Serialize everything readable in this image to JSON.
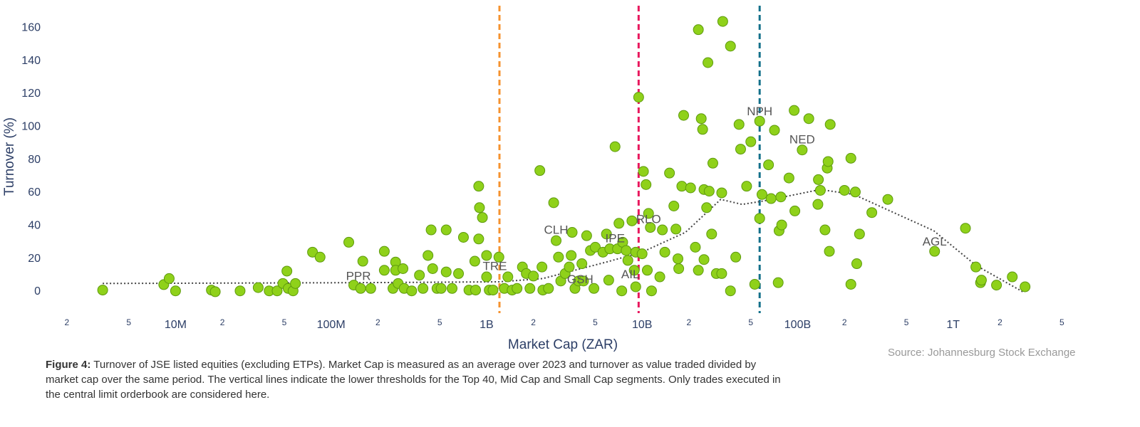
{
  "chart_data": {
    "type": "scatter",
    "x_label": "Market Cap (ZAR)",
    "y_label": "Turnover (%)",
    "log_x": true,
    "color": "#8fd11a",
    "xlim": [
      1400000.0,
      7600000000000.0
    ],
    "ylim": [
      -13,
      177
    ],
    "xticks": [
      {
        "value": 2000000.0,
        "label": "2"
      },
      {
        "value": 5000000.0,
        "label": "5"
      },
      {
        "value": 10000000.0,
        "label": "10M"
      },
      {
        "value": 20000000.0,
        "label": "2"
      },
      {
        "value": 50000000.0,
        "label": "5"
      },
      {
        "value": 100000000.0,
        "label": "100M"
      },
      {
        "value": 200000000.0,
        "label": "2"
      },
      {
        "value": 500000000.0,
        "label": "5"
      },
      {
        "value": 1000000000.0,
        "label": "1B"
      },
      {
        "value": 2000000000.0,
        "label": "2"
      },
      {
        "value": 5000000000.0,
        "label": "5"
      },
      {
        "value": 10000000000.0,
        "label": "10B"
      },
      {
        "value": 20000000000.0,
        "label": "2"
      },
      {
        "value": 50000000000.0,
        "label": "5"
      },
      {
        "value": 100000000000.0,
        "label": "100B"
      },
      {
        "value": 200000000000.0,
        "label": "2"
      },
      {
        "value": 500000000000.0,
        "label": "5"
      },
      {
        "value": 1000000000000.0,
        "label": "1T"
      },
      {
        "value": 2000000000000.0,
        "label": "2"
      },
      {
        "value": 5000000000000.0,
        "label": "5"
      }
    ],
    "yticks": [
      0,
      20,
      40,
      60,
      80,
      100,
      120,
      140,
      160
    ],
    "x": [
      3400000.0,
      8400000.0,
      9100000.0,
      10000000.0,
      17000000.0,
      18000000.0,
      26000000.0,
      34000000.0,
      40000000.0,
      45000000.0,
      49000000.0,
      52000000.0,
      53000000.0,
      57000000.0,
      59000000.0,
      76000000.0,
      85000000.0,
      130000000.0,
      140000000.0,
      155000000.0,
      160000000.0,
      180000000.0,
      220000000.0,
      220000000.0,
      250000000.0,
      260000000.0,
      260000000.0,
      270000000.0,
      290000000.0,
      295000000.0,
      330000000.0,
      370000000.0,
      390000000.0,
      420000000.0,
      440000000.0,
      450000000.0,
      480000000.0,
      510000000.0,
      550000000.0,
      550000000.0,
      600000000.0,
      660000000.0,
      710000000.0,
      770000000.0,
      840000000.0,
      890000000.0,
      900000000.0,
      940000000.0,
      890000000.0,
      850000000.0,
      1000000000.0,
      1000000000.0,
      1040000000.0,
      1100000000.0,
      1200000000.0,
      1300000000.0,
      1370000000.0,
      1460000000.0,
      1570000000.0,
      1700000000.0,
      1800000000.0,
      1900000000.0,
      2000000000.0,
      2200000000.0,
      2270000000.0,
      2300000000.0,
      2500000000.0,
      2700000000.0,
      2800000000.0,
      2900000000.0,
      3000000000.0,
      3200000000.0,
      3400000000.0,
      3500000000.0,
      3550000000.0,
      3700000000.0,
      3900000000.0,
      4100000000.0,
      4200000000.0,
      4400000000.0,
      4650000000.0,
      4900000000.0,
      5000000000.0,
      5600000000.0,
      5900000000.0,
      6100000000.0,
      6200000000.0,
      6700000000.0,
      6950000000.0,
      7100000000.0,
      7400000000.0,
      7500000000.0,
      7900000000.0,
      8100000000.0,
      8600000000.0,
      8900000000.0,
      9100000000.0,
      9100000000.0,
      9500000000.0,
      10000000000.0,
      10200000000.0,
      10600000000.0,
      10800000000.0,
      11000000000.0,
      11300000000.0,
      11500000000.0,
      13000000000.0,
      13500000000.0,
      14000000000.0,
      15000000000.0,
      16000000000.0,
      16500000000.0,
      17000000000.0,
      17200000000.0,
      18000000000.0,
      18500000000.0,
      20500000000.0,
      22000000000.0,
      23000000000.0,
      23000000000.0,
      24000000000.0,
      24500000000.0,
      25000000000.0,
      25000000000.0,
      26000000000.0,
      26500000000.0,
      27000000000.0,
      28000000000.0,
      28500000000.0,
      30000000000.0,
      32500000000.0,
      33000000000.0,
      32500000000.0,
      37000000000.0,
      37000000000.0,
      40000000000.0,
      42000000000.0,
      43000000000.0,
      47000000000.0,
      50000000000.0,
      53000000000.0,
      57000000000.0,
      57000000000.0,
      59000000000.0,
      65000000000.0,
      67500000000.0,
      71000000000.0,
      75000000000.0,
      76000000000.0,
      78000000000.0,
      79000000000.0,
      88000000000.0,
      95000000000.0,
      96000000000.0,
      107000000000.0,
      118000000000.0,
      135000000000.0,
      136000000000.0,
      140000000000.0,
      150000000000.0,
      155000000000.0,
      157000000000.0,
      160000000000.0,
      162000000000.0,
      200000000000.0,
      220000000000.0,
      220000000000.0,
      235000000000.0,
      240000000000.0,
      250000000000.0,
      300000000000.0,
      380000000000.0,
      760000000000.0,
      1200000000000.0,
      1400000000000.0,
      1500000000000.0,
      1520000000000.0,
      1900000000000.0,
      2400000000000.0,
      2900000000000.0
    ],
    "values": [
      1,
      4.3,
      8,
      0.5,
      1,
      0,
      0.5,
      2.5,
      0.5,
      0.5,
      5,
      12.5,
      2,
      0.5,
      5,
      24,
      21,
      30,
      4,
      2,
      18.5,
      2,
      24.5,
      13,
      2,
      18,
      13,
      5,
      14,
      2,
      0.5,
      10,
      2,
      22,
      37.5,
      14,
      2,
      2,
      37.5,
      12,
      2,
      11,
      33,
      1,
      18.5,
      64,
      51,
      45,
      32,
      1,
      22,
      9,
      1,
      1,
      21,
      2,
      9,
      1,
      2,
      15,
      11,
      2,
      9.5,
      73.5,
      15,
      1,
      2,
      54,
      31,
      21,
      6.5,
      11,
      15,
      22,
      36,
      2,
      6.5,
      17,
      6.5,
      34,
      25,
      2,
      27,
      24,
      35,
      7,
      26,
      88,
      26,
      41.5,
      0.5,
      30,
      25,
      19,
      43,
      13,
      24,
      3,
      118,
      23,
      73,
      65,
      13,
      47.5,
      39,
      0.5,
      9,
      37.5,
      24,
      72,
      52,
      38,
      20,
      14,
      64,
      107,
      63,
      27,
      13,
      159,
      105,
      98.5,
      62,
      19.5,
      51,
      139,
      61,
      35,
      78,
      11,
      60,
      164,
      11,
      149,
      0.5,
      21,
      101.5,
      86.5,
      64,
      91,
      4.5,
      44.5,
      103.5,
      59,
      77,
      56.5,
      98,
      5.5,
      37,
      57.5,
      40.5,
      69,
      110,
      49,
      86,
      105,
      53,
      68,
      61.5,
      37.5,
      75,
      79,
      24.5,
      101.5,
      61.5,
      81,
      4.5,
      60.5,
      17,
      35,
      48,
      56,
      24.5,
      38.5,
      15,
      5.5,
      7,
      4,
      9,
      3
    ],
    "trend": {
      "x": [
        3400000.0,
        150000000.0,
        1200000000.0,
        2300000000.0,
        5900000000.0,
        10000000000.0,
        19000000000.0,
        32000000000.0,
        44000000000.0,
        60000000000.0,
        140000000000.0,
        230000000000.0,
        750000000000.0,
        1400000000000.0,
        2800000000000.0
      ],
      "values": [
        5,
        5.5,
        6,
        8,
        18,
        24,
        36,
        56,
        53,
        55,
        62,
        59,
        37,
        16,
        0
      ]
    },
    "reference_lines": [
      {
        "value": 1210000000.0,
        "color": "#f5922f"
      },
      {
        "value": 9500000000.0,
        "color": "#e8175d"
      },
      {
        "value": 57000000000.0,
        "color": "#13708a"
      }
    ],
    "annotations": [
      {
        "text": "PPR",
        "x": 150000000.0,
        "y": 9
      },
      {
        "text": "TRE",
        "x": 1130000000.0,
        "y": 15
      },
      {
        "text": "CLH",
        "x": 2800000000.0,
        "y": 37
      },
      {
        "text": "GSH",
        "x": 4000000000.0,
        "y": 7
      },
      {
        "text": "IPE",
        "x": 6700000000.0,
        "y": 32
      },
      {
        "text": "AIL",
        "x": 8400000000.0,
        "y": 10
      },
      {
        "text": "RLO",
        "x": 11000000000.0,
        "y": 43.5
      },
      {
        "text": "NPH",
        "x": 57000000000.0,
        "y": 109
      },
      {
        "text": "NED",
        "x": 107000000000.0,
        "y": 92
      },
      {
        "text": "AGL",
        "x": 760000000000.0,
        "y": 30
      }
    ],
    "caption": {
      "label": "Figure 4:",
      "text": "Turnover of JSE listed equities (excluding ETPs). Market Cap is measured as an average over 2023 and turnover as value traded divided by market cap over the same period. The vertical lines indicate the lower thresholds for the Top 40, Mid Cap and Small Cap segments. Only trades executed in the central limit orderbook are considered here."
    },
    "source": "Source: Johannesburg Stock Exchange"
  }
}
